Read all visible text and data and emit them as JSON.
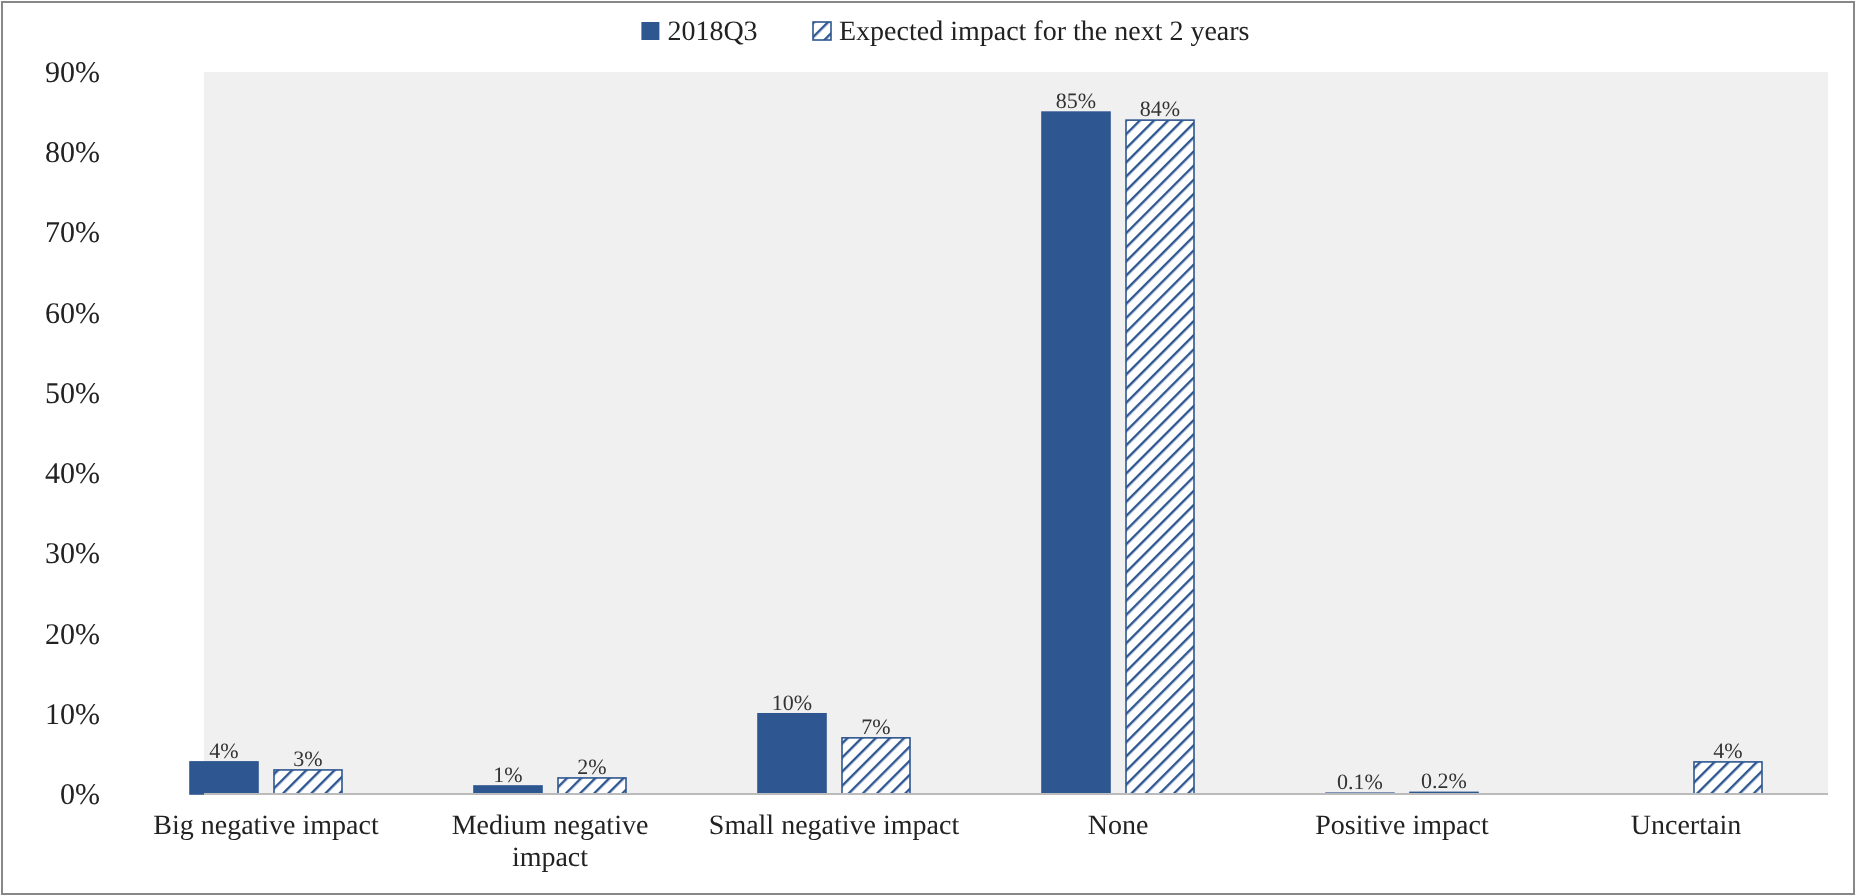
{
  "chart_data": {
    "type": "bar",
    "categories": [
      "Big negative impact",
      "Medium negative impact",
      "Small negative impact",
      "None",
      "Positive impact",
      "Uncertain"
    ],
    "series": [
      {
        "name": "2018Q3",
        "color": "#2e5690",
        "values": [
          4,
          1,
          10,
          85,
          0.1,
          null
        ],
        "value_labels": [
          "4%",
          "1%",
          "10%",
          "85%",
          "0.1%",
          null
        ]
      },
      {
        "name": "Expected impact for the next 2 years",
        "color": "#2e5690",
        "values": [
          3,
          2,
          7,
          84,
          0.2,
          4
        ],
        "value_labels": [
          "3%",
          "2%",
          "7%",
          "84%",
          "0.2%",
          "4%"
        ]
      }
    ],
    "ylim": [
      0,
      90
    ],
    "yticks": [
      {
        "value": 0,
        "label": "0%"
      },
      {
        "value": 10,
        "label": "10%"
      },
      {
        "value": 20,
        "label": "20%"
      },
      {
        "value": 30,
        "label": "30%"
      },
      {
        "value": 40,
        "label": "40%"
      },
      {
        "value": 50,
        "label": "50%"
      },
      {
        "value": 60,
        "label": "60%"
      },
      {
        "value": 70,
        "label": "70%"
      },
      {
        "value": 80,
        "label": "80%"
      },
      {
        "value": 90,
        "label": "90%"
      }
    ],
    "legend": "top"
  }
}
